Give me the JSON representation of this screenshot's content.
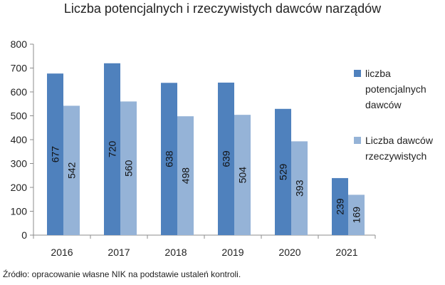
{
  "chart_data": {
    "type": "bar",
    "title": "Liczba potencjalnych i rzeczywistych dawców narządów",
    "categories": [
      "2016",
      "2017",
      "2018",
      "2019",
      "2020",
      "2021"
    ],
    "series": [
      {
        "name": "liczba potencjalnych dawców",
        "values": [
          677,
          720,
          638,
          639,
          529,
          239
        ],
        "color": "#4f81bd"
      },
      {
        "name": "Liczba dawców rzeczywistych",
        "values": [
          542,
          560,
          498,
          504,
          393,
          169
        ],
        "color": "#95b3d7"
      }
    ],
    "ylim": [
      0,
      800
    ],
    "yticks": [
      0,
      100,
      200,
      300,
      400,
      500,
      600,
      700,
      800
    ],
    "grid": false,
    "legend_position": "right",
    "data_labels": "inside-bar-vertical"
  },
  "source_note": "Źródło: opracowanie własne NIK na podstawie ustaleń kontroli."
}
